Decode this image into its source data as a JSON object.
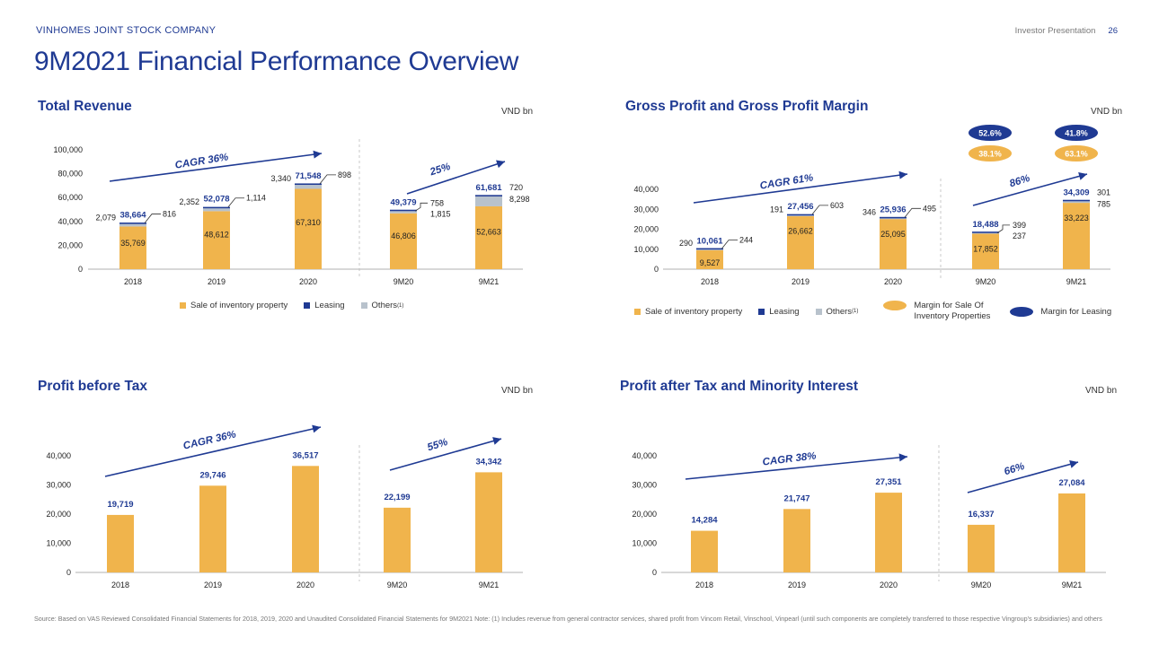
{
  "header": {
    "company": "VINHOMES JOINT STOCK COMPANY",
    "presentation": "Investor Presentation",
    "page": "26",
    "title": "9M2021 Financial Performance Overview"
  },
  "colors": {
    "navy": "#1f3a93",
    "gold": "#f0b44c",
    "grey": "#b8c2cc",
    "divider": "#bbbbbb"
  },
  "panels": {
    "revenue": {
      "title": "Total Revenue",
      "unit": "VND bn"
    },
    "gross": {
      "title": "Gross Profit and Gross Profit Margin",
      "unit": "VND bn"
    },
    "pbt": {
      "title": "Profit before Tax",
      "unit": "VND bn"
    },
    "pat": {
      "title": "Profit after Tax and Minority Interest",
      "unit": "VND bn"
    }
  },
  "legend": {
    "sale": "Sale of inventory property",
    "leasing": "Leasing",
    "others": "Others",
    "others_sup": "(1)",
    "margin_sale_1": "Margin for Sale Of",
    "margin_sale_2": "Inventory Properties",
    "margin_leasing": "Margin for Leasing"
  },
  "footnote": "Source: Based on VAS Reviewed Consolidated Financial Statements for 2018, 2019, 2020 and Unaudited Consolidated Financial Statements for 9M2021 Note: (1) Includes revenue from general contractor services, shared profit from Vincom Retail, Vinschool, Vinpearl (until such components are completely transferred to those respective Vingroup's subsidiaries) and others",
  "chart_data": [
    {
      "id": "revenue",
      "type": "bar",
      "stacked": true,
      "title": "Total Revenue",
      "categories": [
        "2018",
        "2019",
        "2020",
        "9M20",
        "9M21"
      ],
      "ylim": [
        0,
        100000
      ],
      "yticks": [
        "0",
        "20,000",
        "40,000",
        "60,000",
        "80,000",
        "100,000"
      ],
      "series": [
        {
          "name": "Sale of inventory property",
          "values": [
            35769,
            48612,
            67310,
            46806,
            52663
          ],
          "labels": [
            "35,769",
            "48,612",
            "67,310",
            "46,806",
            "52,663"
          ]
        },
        {
          "name": "Leasing",
          "values": [
            816,
            1114,
            898,
            758,
            720
          ],
          "labels": [
            "816",
            "1,114",
            "898",
            "758",
            "720"
          ]
        },
        {
          "name": "Others",
          "values": [
            2079,
            2352,
            3340,
            1815,
            8298
          ],
          "labels": [
            "2,079",
            "2,352",
            "3,340",
            "1,815",
            "8,298"
          ]
        }
      ],
      "totals": [
        "38,664",
        "52,078",
        "71,548",
        "49,379",
        "61,681"
      ],
      "growth": [
        {
          "text": "CAGR 36%"
        },
        {
          "text": "25%"
        }
      ]
    },
    {
      "id": "gross",
      "type": "bar",
      "stacked": true,
      "title": "Gross Profit and Gross Profit Margin",
      "categories": [
        "2018",
        "2019",
        "2020",
        "9M20",
        "9M21"
      ],
      "ylim": [
        0,
        40000
      ],
      "yticks": [
        "0",
        "10,000",
        "20,000",
        "30,000",
        "40,000"
      ],
      "series": [
        {
          "name": "Sale of inventory property",
          "values": [
            9527,
            26662,
            25095,
            17852,
            33223
          ],
          "labels": [
            "9,527",
            "26,662",
            "25,095",
            "17,852",
            "33,223"
          ]
        },
        {
          "name": "Leasing",
          "values": [
            244,
            603,
            495,
            399,
            301
          ],
          "labels": [
            "244",
            "603",
            "495",
            "399",
            "301"
          ]
        },
        {
          "name": "Others",
          "values": [
            290,
            191,
            346,
            237,
            785
          ],
          "labels": [
            "290",
            "191",
            "346",
            "237",
            "785"
          ]
        }
      ],
      "totals": [
        "10,061",
        "27,456",
        "25,936",
        "18,488",
        "34,309"
      ],
      "growth": [
        {
          "text": "CAGR 61%"
        },
        {
          "text": "86%"
        }
      ],
      "margins": {
        "leasing": {
          "9M20": "52.6%",
          "9M21": "41.8%"
        },
        "sale": {
          "9M20": "38.1%",
          "9M21": "63.1%"
        }
      }
    },
    {
      "id": "pbt",
      "type": "bar",
      "title": "Profit before Tax",
      "categories": [
        "2018",
        "2019",
        "2020",
        "9M20",
        "9M21"
      ],
      "ylim": [
        0,
        40000
      ],
      "yticks": [
        "0",
        "10,000",
        "20,000",
        "30,000",
        "40,000"
      ],
      "values": [
        19719,
        29746,
        36517,
        22199,
        34342
      ],
      "labels": [
        "19,719",
        "29,746",
        "36,517",
        "22,199",
        "34,342"
      ],
      "growth": [
        {
          "text": "CAGR 36%"
        },
        {
          "text": "55%"
        }
      ]
    },
    {
      "id": "pat",
      "type": "bar",
      "title": "Profit after Tax and Minority Interest",
      "categories": [
        "2018",
        "2019",
        "2020",
        "9M20",
        "9M21"
      ],
      "ylim": [
        0,
        40000
      ],
      "yticks": [
        "0",
        "10,000",
        "20,000",
        "30,000",
        "40,000"
      ],
      "values": [
        14284,
        21747,
        27351,
        16337,
        27084
      ],
      "labels": [
        "14,284",
        "21,747",
        "27,351",
        "16,337",
        "27,084"
      ],
      "growth": [
        {
          "text": "CAGR 38%"
        },
        {
          "text": "66%"
        }
      ]
    }
  ]
}
